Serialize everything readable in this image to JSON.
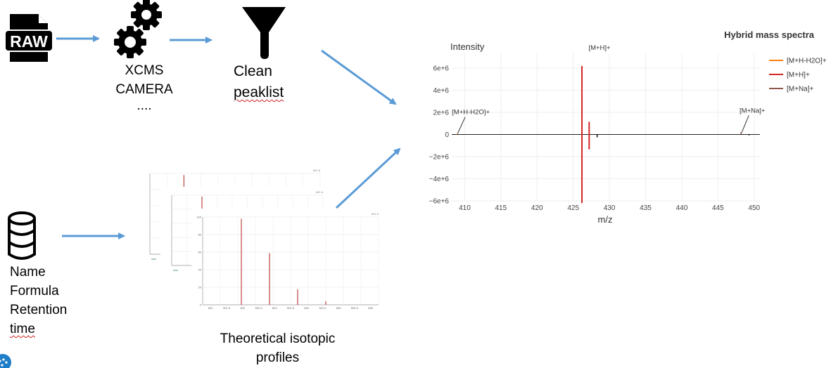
{
  "raw_icon": {
    "text": "RAW"
  },
  "step_processing": {
    "lines": [
      "XCMS",
      "CAMERA",
      "...."
    ]
  },
  "step_clean": {
    "lines": [
      "Clean",
      "peaklist"
    ]
  },
  "database": {
    "lines": [
      "Name",
      "Formula",
      "Retention",
      "time"
    ]
  },
  "theoretical": {
    "lines": [
      "Theoretical isotopic",
      "profiles"
    ]
  },
  "colors": {
    "arrow": "#5b9bd5",
    "orange": "#ff7f0e",
    "red": "#d62728",
    "brown": "#8c564b",
    "icon": "#000000"
  },
  "chart_data": {
    "type": "bar",
    "title": "Hybrid mass spectra",
    "ylabel": "Intensity",
    "xlabel": "m/z",
    "xlim": [
      408.5,
      450.8
    ],
    "ylim": [
      -6000000,
      6700000
    ],
    "x_ticks": [
      410,
      415,
      420,
      425,
      430,
      435,
      440,
      445,
      450
    ],
    "y_ticks": [
      6000000,
      4000000,
      2000000,
      0,
      -2000000,
      -4000000,
      -6000000
    ],
    "y_tick_labels": [
      "6e+6",
      "4e+6",
      "2e+6",
      "0",
      "−2e+6",
      "−4e+6",
      "−6e+6"
    ],
    "grid": true,
    "legend_position": "top-right",
    "series": [
      {
        "name": "[M+H-H2O]+",
        "color": "#ff7f0e",
        "points": [
          {
            "x": 408.9,
            "y": 50000
          }
        ]
      },
      {
        "name": "[M+H]+",
        "color": "#d62728",
        "points": [
          {
            "x": 426.2,
            "y": 6200000
          },
          {
            "x": 427.2,
            "y": 1150000
          },
          {
            "x": 426.2,
            "y": -6200000
          },
          {
            "x": 427.2,
            "y": -1350000
          }
        ]
      },
      {
        "name": "[M+Na]+",
        "color": "#8c564b",
        "points": [
          {
            "x": 448.2,
            "y": 200000
          }
        ]
      }
    ],
    "experimental_points": [
      {
        "x": 428.3,
        "y": -250000
      },
      {
        "x": 449.3,
        "y": -80000
      }
    ],
    "annotations": [
      {
        "text": "[M+H]+",
        "x": 426.2,
        "y": 6200000
      },
      {
        "text": "[M+H-H2O]+",
        "x": 408.9,
        "y": 50000
      },
      {
        "text": "[M+Na]+",
        "x": 448.2,
        "y": 200000
      }
    ]
  },
  "thumb_charts": [
    {
      "peaks": [
        100,
        60,
        18,
        4
      ],
      "tick_labels": [
        "100",
        "80",
        "60",
        "40",
        "20",
        "0"
      ],
      "x_labels": [
        "801",
        "801.5",
        "802",
        "802.5",
        "803",
        "803.5",
        "804",
        "804.5",
        "805",
        "805.5",
        "806"
      ],
      "corner": "801.8"
    },
    {
      "peaks": [
        100,
        65
      ],
      "tick_labels": [],
      "x_labels": [],
      "corner": "801.8"
    },
    {
      "peaks": [
        100,
        70
      ],
      "tick_labels": [],
      "x_labels": [],
      "corner": "801.8"
    }
  ]
}
